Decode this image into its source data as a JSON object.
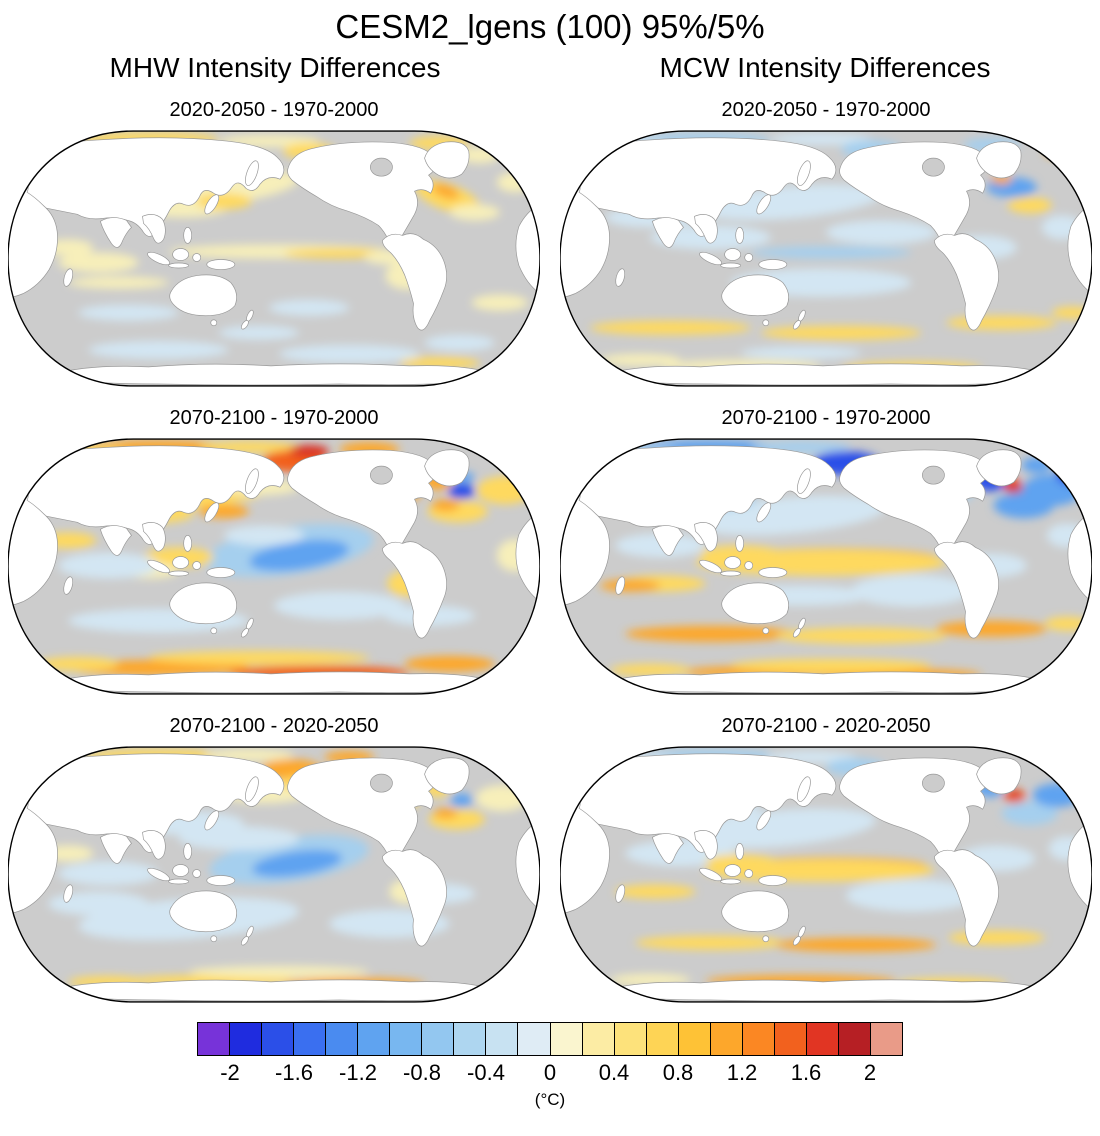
{
  "title": "CESM2_lgens (100) 95%/5%",
  "columns": [
    "MHW Intensity Differences",
    "MCW Intensity Differences"
  ],
  "panels": [
    {
      "column": "MHW",
      "title": "2020-2050 - 1970-2000"
    },
    {
      "column": "MCW",
      "title": "2020-2050 - 1970-2000"
    },
    {
      "column": "MHW",
      "title": "2070-2100 - 1970-2000"
    },
    {
      "column": "MCW",
      "title": "2070-2100 - 1970-2000"
    },
    {
      "column": "MHW",
      "title": "2070-2100 - 2020-2050"
    },
    {
      "column": "MCW",
      "title": "2070-2100 - 2020-2050"
    }
  ],
  "colorbar": {
    "unit": "(°C)",
    "tick_labels": [
      "-2",
      "-1.6",
      "-1.2",
      "-0.8",
      "-0.4",
      "0",
      "0.4",
      "0.8",
      "1.2",
      "1.6",
      "2"
    ],
    "cell_colors": [
      "#7733d9",
      "#1f2cdf",
      "#2b4fe8",
      "#3a6ff0",
      "#4a8bf0",
      "#5fa3f0",
      "#78b7f0",
      "#93c7f0",
      "#aed6f0",
      "#c8e2f2",
      "#dfecf5",
      "#faf5cf",
      "#fceca4",
      "#fde27b",
      "#fed455",
      "#fec236",
      "#fda72b",
      "#fb8723",
      "#f2611e",
      "#e13523",
      "#b61f24",
      "#e99b88"
    ],
    "min": -2,
    "max": 2,
    "cell_interval": 0.2
  },
  "map_style": {
    "ocean_color": "#cccccc",
    "land_color": "#ffffff",
    "coastline_color": "#999999",
    "outline_color": "#000000"
  },
  "chart_data": {
    "type": "heatmap",
    "subtype": "global-map-panel-figure",
    "projection": "Robinson, Pacific-centered",
    "title": "CESM2_lgens (100) 95%/5%",
    "colorbar": {
      "label": "(°C)",
      "min": -2,
      "max": 2,
      "cell_interval": 0.2,
      "ticks": [
        -2,
        -1.6,
        -1.2,
        -0.8,
        -0.4,
        0,
        0.4,
        0.8,
        1.2,
        1.6,
        2
      ],
      "palette": "blue-violet to blue to pale blue to pale yellow to orange to dark red to salmon",
      "position": "bottom"
    },
    "panels": [
      {
        "row": 1,
        "col": 1,
        "variable": "MHW Intensity Differences",
        "comparison": "2020-2050 - 1970-2000",
        "pattern": "mostly near zero (grey ocean); weak warm anomalies (+0.2 to +0.8°C) along Arctic edge, Gulf Stream / NW Atlantic, Kuroshio, North Pacific and equatorial Pacific; weak cool patches (-0.2 to -0.4°C) in the Southern Ocean"
      },
      {
        "row": 1,
        "col": 2,
        "variable": "MCW Intensity Differences",
        "comparison": "2020-2050 - 1970-2000",
        "pattern": "weak negative anomalies (-0.2 to -0.6°C) over much of the global ocean and Arctic; warm band (+0.2 to +0.6°C) near 45-60°S and along the Antarctic coast; mixed blue/orange signal in the Gulf Stream region"
      },
      {
        "row": 2,
        "col": 1,
        "variable": "MHW Intensity Differences",
        "comparison": "2070-2100 - 1970-2000",
        "pattern": "strong warming (+0.8 to +2°C) in the Arctic, Bering Sea, Hudson Bay and NW Atlantic with a cold blue spot south of Greenland; cool anomaly (-0.4 to -1°C) in the central tropical Pacific; yellow subtropical bands and a strong orange band along the Antarctic coast"
      },
      {
        "row": 2,
        "col": 2,
        "variable": "MCW Intensity Differences",
        "comparison": "2070-2100 - 1970-2000",
        "pattern": "strong negative anomalies (-0.8 to -2°C) in the Arctic, Bering Sea and subpolar North Atlantic with a red warm spot south of Greenland; positive bands (+0.4 to +1.2°C) along the equatorial Pacific, ~45°S and the Antarctic coast; weak negative elsewhere"
      },
      {
        "row": 3,
        "col": 1,
        "variable": "MHW Intensity Differences",
        "comparison": "2070-2100 - 2020-2050",
        "pattern": "moderate warming (+0.4 to +1.2°C) in the Arctic, Hudson Bay and NW Atlantic with small cold spot south of Greenland; cool anomaly in the central tropical Pacific; weak cool anomalies across southern mid-latitudes; warm Antarctic coastal band"
      },
      {
        "row": 3,
        "col": 2,
        "variable": "MCW Intensity Differences",
        "comparison": "2070-2100 - 2020-2050",
        "pattern": "weak negative anomalies (-0.2 to -0.6°C) over most oceans; positive bands (+0.4 to +1°C) along the equatorial Pacific, ~45°S and the Antarctic coast; warm orange/red spot with cold surroundings south of Greenland"
      }
    ]
  }
}
